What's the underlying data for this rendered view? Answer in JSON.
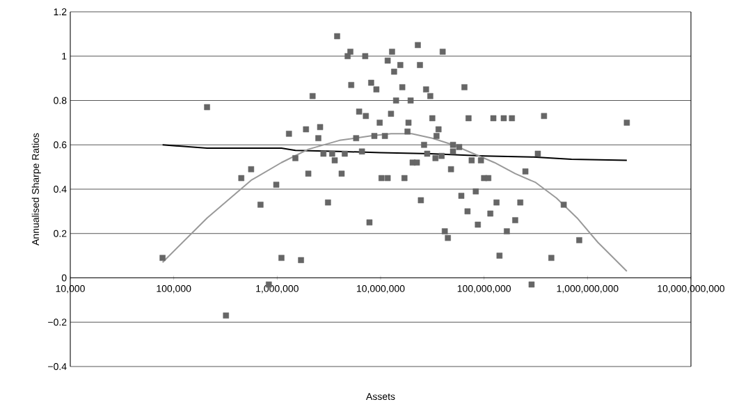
{
  "chart_data": {
    "type": "scatter",
    "xlabel": "Assets",
    "ylabel": "Annualised Sharpe Ratios",
    "log": "x",
    "grid": "y",
    "xlim": [
      10000,
      10000000000
    ],
    "ylim": [
      -0.4,
      1.2
    ],
    "xticks": [
      {
        "value": 10000,
        "label": "10,000"
      },
      {
        "value": 100000,
        "label": "100,000"
      },
      {
        "value": 1000000,
        "label": "1,000,000"
      },
      {
        "value": 10000000,
        "label": "10,000,000"
      },
      {
        "value": 100000000,
        "label": "100,000,000"
      },
      {
        "value": 1000000000,
        "label": "1,000,000,000"
      },
      {
        "value": 10000000000,
        "label": "10,000,000,000"
      }
    ],
    "yticks": [
      {
        "value": -0.4,
        "label": "−0.4"
      },
      {
        "value": -0.2,
        "label": "−0.2"
      },
      0,
      0.2,
      0.4,
      0.6,
      0.8,
      1,
      1.2
    ],
    "series": [
      {
        "marker": "square",
        "color": "#666666",
        "x": [
          78000,
          210000,
          450000,
          560000,
          690000,
          320000,
          830000,
          1100000,
          1700000,
          980000,
          1300000,
          1500000,
          1900000,
          2000000,
          2200000,
          2500000,
          2600000,
          2800000,
          3100000,
          3400000,
          3600000,
          4200000,
          4500000,
          5200000,
          5800000,
          6200000,
          6600000,
          7200000,
          7800000,
          8100000,
          8700000,
          9100000,
          9800000,
          10200000,
          11000000,
          11700000,
          12600000,
          13500000,
          14100000,
          3800000,
          5100000,
          4800000,
          7100000,
          12900000,
          11700000,
          15500000,
          22900000,
          24000000,
          39800000,
          16200000,
          27500000,
          30200000,
          64600000,
          19500000,
          31600000,
          70800000,
          123000000,
          155000000,
          186000000,
          18600000,
          18200000,
          36300000,
          34700000,
          26300000,
          28200000,
          33900000,
          38900000,
          20400000,
          22400000,
          17000000,
          50100000,
          57500000,
          50100000,
          47900000,
          75900000,
          93300000,
          100000000,
          110000000,
          251000000,
          83200000,
          60300000,
          24500000,
          132000000,
          224000000,
          69200000,
          115000000,
          200000000,
          87100000,
          41700000,
          166000000,
          44700000,
          141000000,
          380000000,
          2400000000,
          331000000,
          589000000,
          832000000,
          447000000,
          288000000
        ],
        "values": [
          0.09,
          0.77,
          0.45,
          0.49,
          0.33,
          -0.17,
          -0.03,
          0.09,
          0.08,
          0.42,
          0.65,
          0.54,
          0.67,
          0.47,
          0.82,
          0.63,
          0.68,
          0.56,
          0.34,
          0.56,
          0.53,
          0.47,
          0.56,
          0.87,
          0.63,
          0.75,
          0.57,
          0.73,
          0.25,
          0.88,
          0.64,
          0.85,
          0.7,
          0.45,
          0.64,
          0.45,
          0.74,
          0.93,
          0.8,
          1.09,
          1.02,
          1.0,
          1.0,
          1.02,
          0.98,
          0.96,
          1.05,
          0.96,
          1.02,
          0.86,
          0.85,
          0.82,
          0.86,
          0.8,
          0.72,
          0.72,
          0.72,
          0.72,
          0.72,
          0.7,
          0.66,
          0.67,
          0.64,
          0.6,
          0.56,
          0.54,
          0.55,
          0.52,
          0.52,
          0.45,
          0.6,
          0.59,
          0.57,
          0.49,
          0.53,
          0.53,
          0.45,
          0.45,
          0.48,
          0.39,
          0.37,
          0.35,
          0.34,
          0.34,
          0.3,
          0.29,
          0.26,
          0.24,
          0.21,
          0.21,
          0.18,
          0.1,
          0.73,
          0.7,
          0.56,
          0.33,
          0.17,
          0.09,
          -0.03
        ]
      },
      {
        "type": "line",
        "marker": "none",
        "color": "#000000",
        "x": [
          78000,
          210000,
          1100000,
          1500000,
          4000000,
          10000000,
          30000000,
          100000000,
          300000000,
          700000000,
          2400000000
        ],
        "values": [
          0.6,
          0.585,
          0.585,
          0.575,
          0.57,
          0.565,
          0.56,
          0.55,
          0.545,
          0.535,
          0.53
        ]
      },
      {
        "type": "line",
        "marker": "none",
        "color": "#999999",
        "x": [
          78000,
          210000,
          560000,
          1100000,
          2000000,
          4000000,
          7900000,
          12600000,
          20000000,
          31600000,
          50100000,
          79400000,
          126000000,
          200000000,
          316000000,
          501000000,
          794000000,
          1260000000,
          2400000000
        ],
        "values": [
          0.07,
          0.27,
          0.44,
          0.52,
          0.58,
          0.62,
          0.64,
          0.65,
          0.65,
          0.63,
          0.6,
          0.56,
          0.52,
          0.47,
          0.43,
          0.36,
          0.27,
          0.16,
          0.03
        ]
      }
    ]
  }
}
